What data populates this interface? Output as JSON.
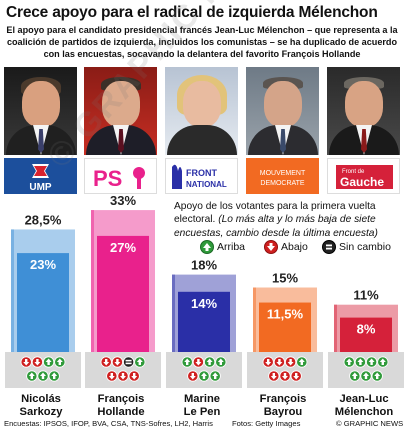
{
  "header": {
    "title": "Crece apoyo para el radical de izquierda Mélenchon",
    "intro": "El apoyo para el candidato presidencial francés Jean-Luc Mélenchon – que representa a la coalición de partidos de izquierda, incluidos los comunistas – se ha duplicado de acuerdo con las encuestas, socavando la delantera del favorito François Hollande"
  },
  "candidates": [
    {
      "first": "Nicolás",
      "last": "Sarkozy",
      "party": "UMP",
      "color": "#3f8fd6"
    },
    {
      "first": "François",
      "last": "Hollande",
      "party": "PS",
      "color": "#e9218c"
    },
    {
      "first": "Marine",
      "last": "Le Pen",
      "party": "FRONT NATIONAL",
      "color": "#2a2fa7"
    },
    {
      "first": "François",
      "last": "Bayrou",
      "party": "MOUVEMENT DEMOCRATE",
      "color": "#f26a22"
    },
    {
      "first": "Jean-Luc",
      "last": "Mélenchon",
      "party": "Front de Gauche",
      "color": "#d5213a"
    }
  ],
  "legend": {
    "text_plain": "Apoyo de los votantes para la primera vuelta electoral.",
    "text_italic": "(Lo más alta y lo más baja de siete encuestas, cambio desde la última encuesta)",
    "up_label": "Arriba",
    "down_label": "Abajo",
    "same_label": "Sin cambio"
  },
  "chart_data": {
    "type": "bar",
    "categories": [
      "Nicolás Sarkozy",
      "François Hollande",
      "Marine Le Pen",
      "François Bayrou",
      "Jean-Luc Mélenchon"
    ],
    "series": [
      {
        "name": "Lo más alta",
        "values": [
          28.5,
          33,
          18,
          15,
          11
        ]
      },
      {
        "name": "Lo más baja",
        "values": [
          23,
          27,
          14,
          11.5,
          8
        ]
      }
    ],
    "high_labels": [
      "28,5%",
      "33%",
      "18%",
      "15%",
      "11%"
    ],
    "low_labels": [
      "23%",
      "27%",
      "14%",
      "11,5%",
      "8%"
    ],
    "changes": [
      [
        "down",
        "down",
        "up",
        "up",
        "up",
        "up",
        "up"
      ],
      [
        "down",
        "down",
        "same",
        "up",
        "down",
        "down",
        "down"
      ],
      [
        "up",
        "down",
        "up",
        "up",
        "down",
        "up",
        "up"
      ],
      [
        "down",
        "down",
        "down",
        "up",
        "down",
        "down",
        "down"
      ],
      [
        "up",
        "up",
        "up",
        "up",
        "up",
        "up",
        "up"
      ]
    ],
    "ylim": [
      0,
      35
    ]
  },
  "footer": {
    "sources": "Encuestas: IPSOS, IFOP, BVA, CSA, TNS-Sofres, LH2, Harris",
    "photos": "Fotos: Getty Images",
    "credit": "© GRAPHIC NEWS"
  },
  "watermark": "© GRAPHIC NEWS"
}
